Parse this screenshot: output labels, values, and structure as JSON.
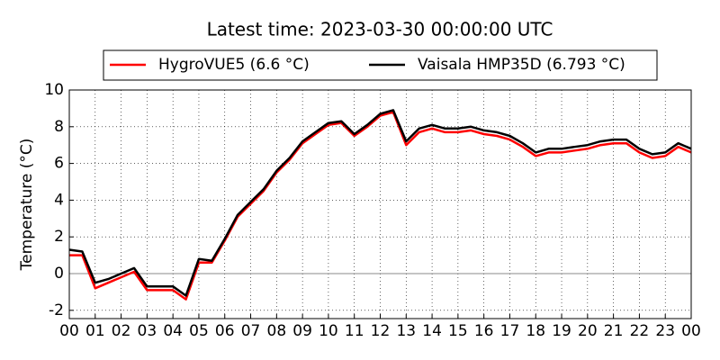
{
  "chart_data": {
    "type": "line",
    "title": "Latest time: 2023-03-30 00:00:00 UTC",
    "y_label": "Temperature (°C)",
    "x": [
      0,
      0.5,
      1,
      1.5,
      2,
      2.5,
      3,
      3.5,
      4,
      4.5,
      5,
      5.5,
      6,
      6.5,
      7,
      7.5,
      8,
      8.5,
      9,
      9.5,
      10,
      10.5,
      11,
      11.5,
      12,
      12.5,
      13,
      13.5,
      14,
      14.5,
      15,
      15.5,
      16,
      16.5,
      17,
      17.5,
      18,
      18.5,
      19,
      19.5,
      20,
      20.5,
      21,
      21.5,
      22,
      22.5,
      23,
      23.5,
      24
    ],
    "series": [
      {
        "name": "HygroVUE5 (6.6 °C)",
        "color": "#ff0000",
        "values": [
          1.0,
          1.0,
          -0.8,
          -0.5,
          -0.2,
          0.1,
          -0.9,
          -0.9,
          -0.9,
          -1.4,
          0.6,
          0.6,
          1.8,
          3.1,
          3.8,
          4.5,
          5.5,
          6.2,
          7.1,
          7.6,
          8.1,
          8.2,
          7.5,
          8.0,
          8.6,
          8.8,
          7.0,
          7.7,
          7.9,
          7.7,
          7.7,
          7.8,
          7.6,
          7.5,
          7.3,
          6.9,
          6.4,
          6.6,
          6.6,
          6.7,
          6.8,
          7.0,
          7.1,
          7.1,
          6.6,
          6.3,
          6.4,
          6.9,
          6.6
        ]
      },
      {
        "name": "Vaisala HMP35D (6.793 °C)",
        "color": "#000000",
        "values": [
          1.3,
          1.2,
          -0.5,
          -0.3,
          0.0,
          0.3,
          -0.7,
          -0.7,
          -0.7,
          -1.2,
          0.8,
          0.7,
          1.9,
          3.2,
          3.9,
          4.6,
          5.6,
          6.3,
          7.2,
          7.7,
          8.2,
          8.3,
          7.6,
          8.1,
          8.7,
          8.9,
          7.2,
          7.9,
          8.1,
          7.9,
          7.9,
          8.0,
          7.8,
          7.7,
          7.5,
          7.1,
          6.6,
          6.8,
          6.8,
          6.9,
          7.0,
          7.2,
          7.3,
          7.3,
          6.8,
          6.5,
          6.6,
          7.1,
          6.8
        ]
      }
    ],
    "xlim": [
      0,
      24
    ],
    "xticks": [
      {
        "value": 0,
        "label": "00"
      },
      {
        "value": 1,
        "label": "01"
      },
      {
        "value": 2,
        "label": "02"
      },
      {
        "value": 3,
        "label": "03"
      },
      {
        "value": 4,
        "label": "04"
      },
      {
        "value": 5,
        "label": "05"
      },
      {
        "value": 6,
        "label": "06"
      },
      {
        "value": 7,
        "label": "07"
      },
      {
        "value": 8,
        "label": "08"
      },
      {
        "value": 9,
        "label": "09"
      },
      {
        "value": 10,
        "label": "10"
      },
      {
        "value": 11,
        "label": "11"
      },
      {
        "value": 12,
        "label": "12"
      },
      {
        "value": 13,
        "label": "13"
      },
      {
        "value": 14,
        "label": "14"
      },
      {
        "value": 15,
        "label": "15"
      },
      {
        "value": 16,
        "label": "16"
      },
      {
        "value": 17,
        "label": "17"
      },
      {
        "value": 18,
        "label": "18"
      },
      {
        "value": 19,
        "label": "19"
      },
      {
        "value": 20,
        "label": "20"
      },
      {
        "value": 21,
        "label": "21"
      },
      {
        "value": 22,
        "label": "22"
      },
      {
        "value": 23,
        "label": "23"
      },
      {
        "value": 24,
        "label": "00"
      }
    ],
    "ylim": [
      -2.45,
      10
    ],
    "yticks": [
      -2,
      0,
      2,
      4,
      6,
      8,
      10
    ],
    "grid": true,
    "legend": "top"
  }
}
